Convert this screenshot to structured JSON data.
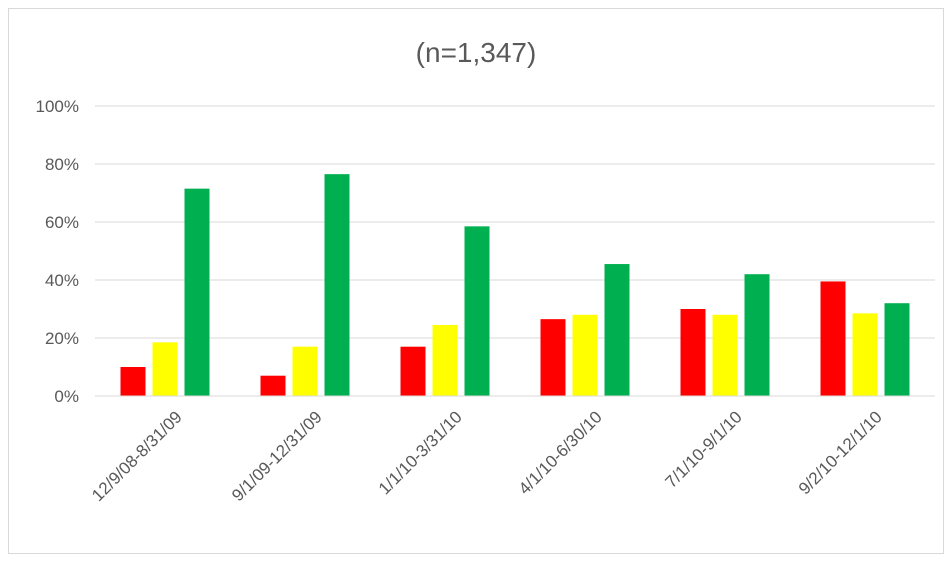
{
  "chart_data": {
    "type": "bar",
    "title": "(n=1,347)",
    "xlabel": "",
    "ylabel": "",
    "ylim": [
      0,
      100
    ],
    "y_ticks": [
      "0%",
      "20%",
      "40%",
      "60%",
      "80%",
      "100%"
    ],
    "grid": true,
    "legend": "none",
    "categories": [
      "12/9/08-8/31/09",
      "9/1/09-12/31/09",
      "1/1/10-3/31/10",
      "4/1/10-6/30/10",
      "7/1/10-9/1/10",
      "9/2/10-12/1/10"
    ],
    "series": [
      {
        "color": "#ff0000",
        "values": [
          10,
          7,
          17,
          26.5,
          30,
          39.5
        ]
      },
      {
        "color": "#ffff00",
        "values": [
          18.5,
          17,
          24.5,
          28,
          28,
          28.5
        ]
      },
      {
        "color": "#00b050",
        "values": [
          71.5,
          76.5,
          58.5,
          45.5,
          42,
          32
        ]
      }
    ]
  }
}
